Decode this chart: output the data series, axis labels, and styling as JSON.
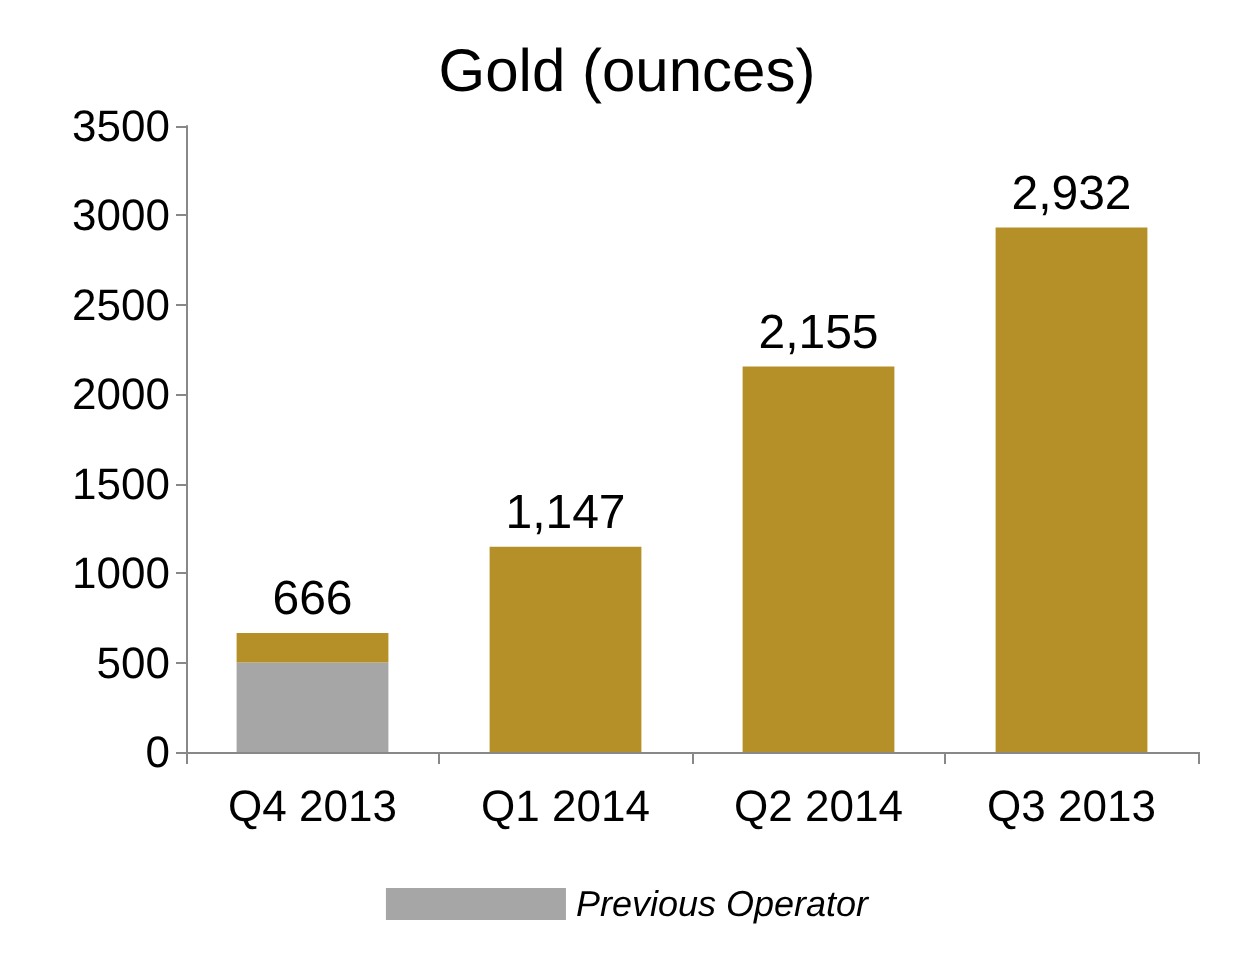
{
  "chart_data": {
    "type": "bar",
    "title": "Gold (ounces)",
    "categories": [
      "Q4 2013",
      "Q1 2014",
      "Q2 2014",
      "Q3 2013"
    ],
    "stacked": true,
    "series": [
      {
        "name": "Previous Operator",
        "color": "#a6a6a6",
        "values": [
          500,
          null,
          null,
          null
        ]
      },
      {
        "color": "#b58f27",
        "values": [
          166,
          1147,
          2155,
          2932
        ]
      }
    ],
    "totals": [
      "666",
      "1,147",
      "2,155",
      "2,932"
    ],
    "ylim": [
      0,
      3500
    ],
    "yticks": [
      0,
      500,
      1000,
      1500,
      2000,
      2500,
      3000,
      3500
    ],
    "grid": false,
    "legend": "bottom"
  }
}
